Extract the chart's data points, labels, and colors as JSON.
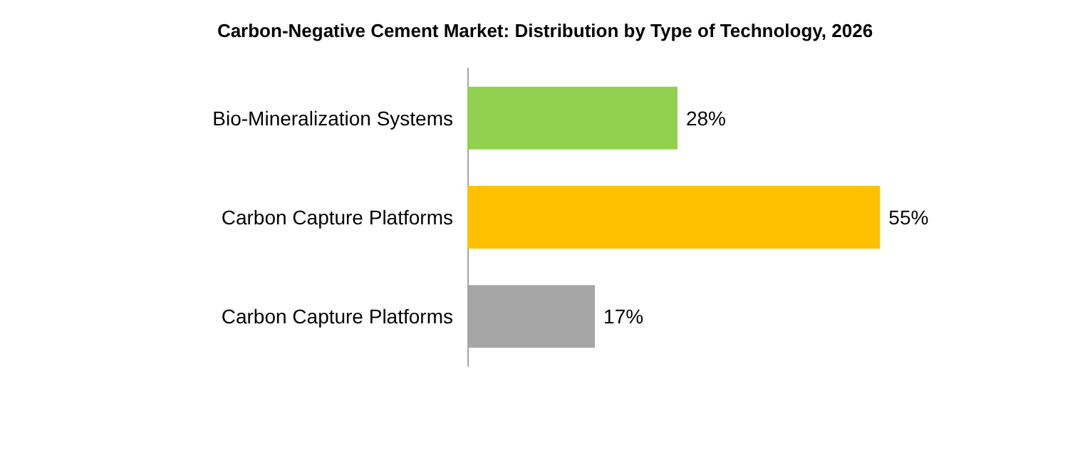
{
  "chart_data": {
    "type": "bar",
    "orientation": "horizontal",
    "title": "Carbon-Negative Cement Market: Distribution by Type of Technology, 2026",
    "categories": [
      "Bio-Mineralization Systems",
      "Carbon Capture Platforms",
      "Carbon Capture Platforms"
    ],
    "values": [
      28,
      55,
      17
    ],
    "colors": [
      "#92d050",
      "#ffc000",
      "#a6a6a6"
    ],
    "value_labels": [
      "28%",
      "55%",
      "17%"
    ]
  }
}
